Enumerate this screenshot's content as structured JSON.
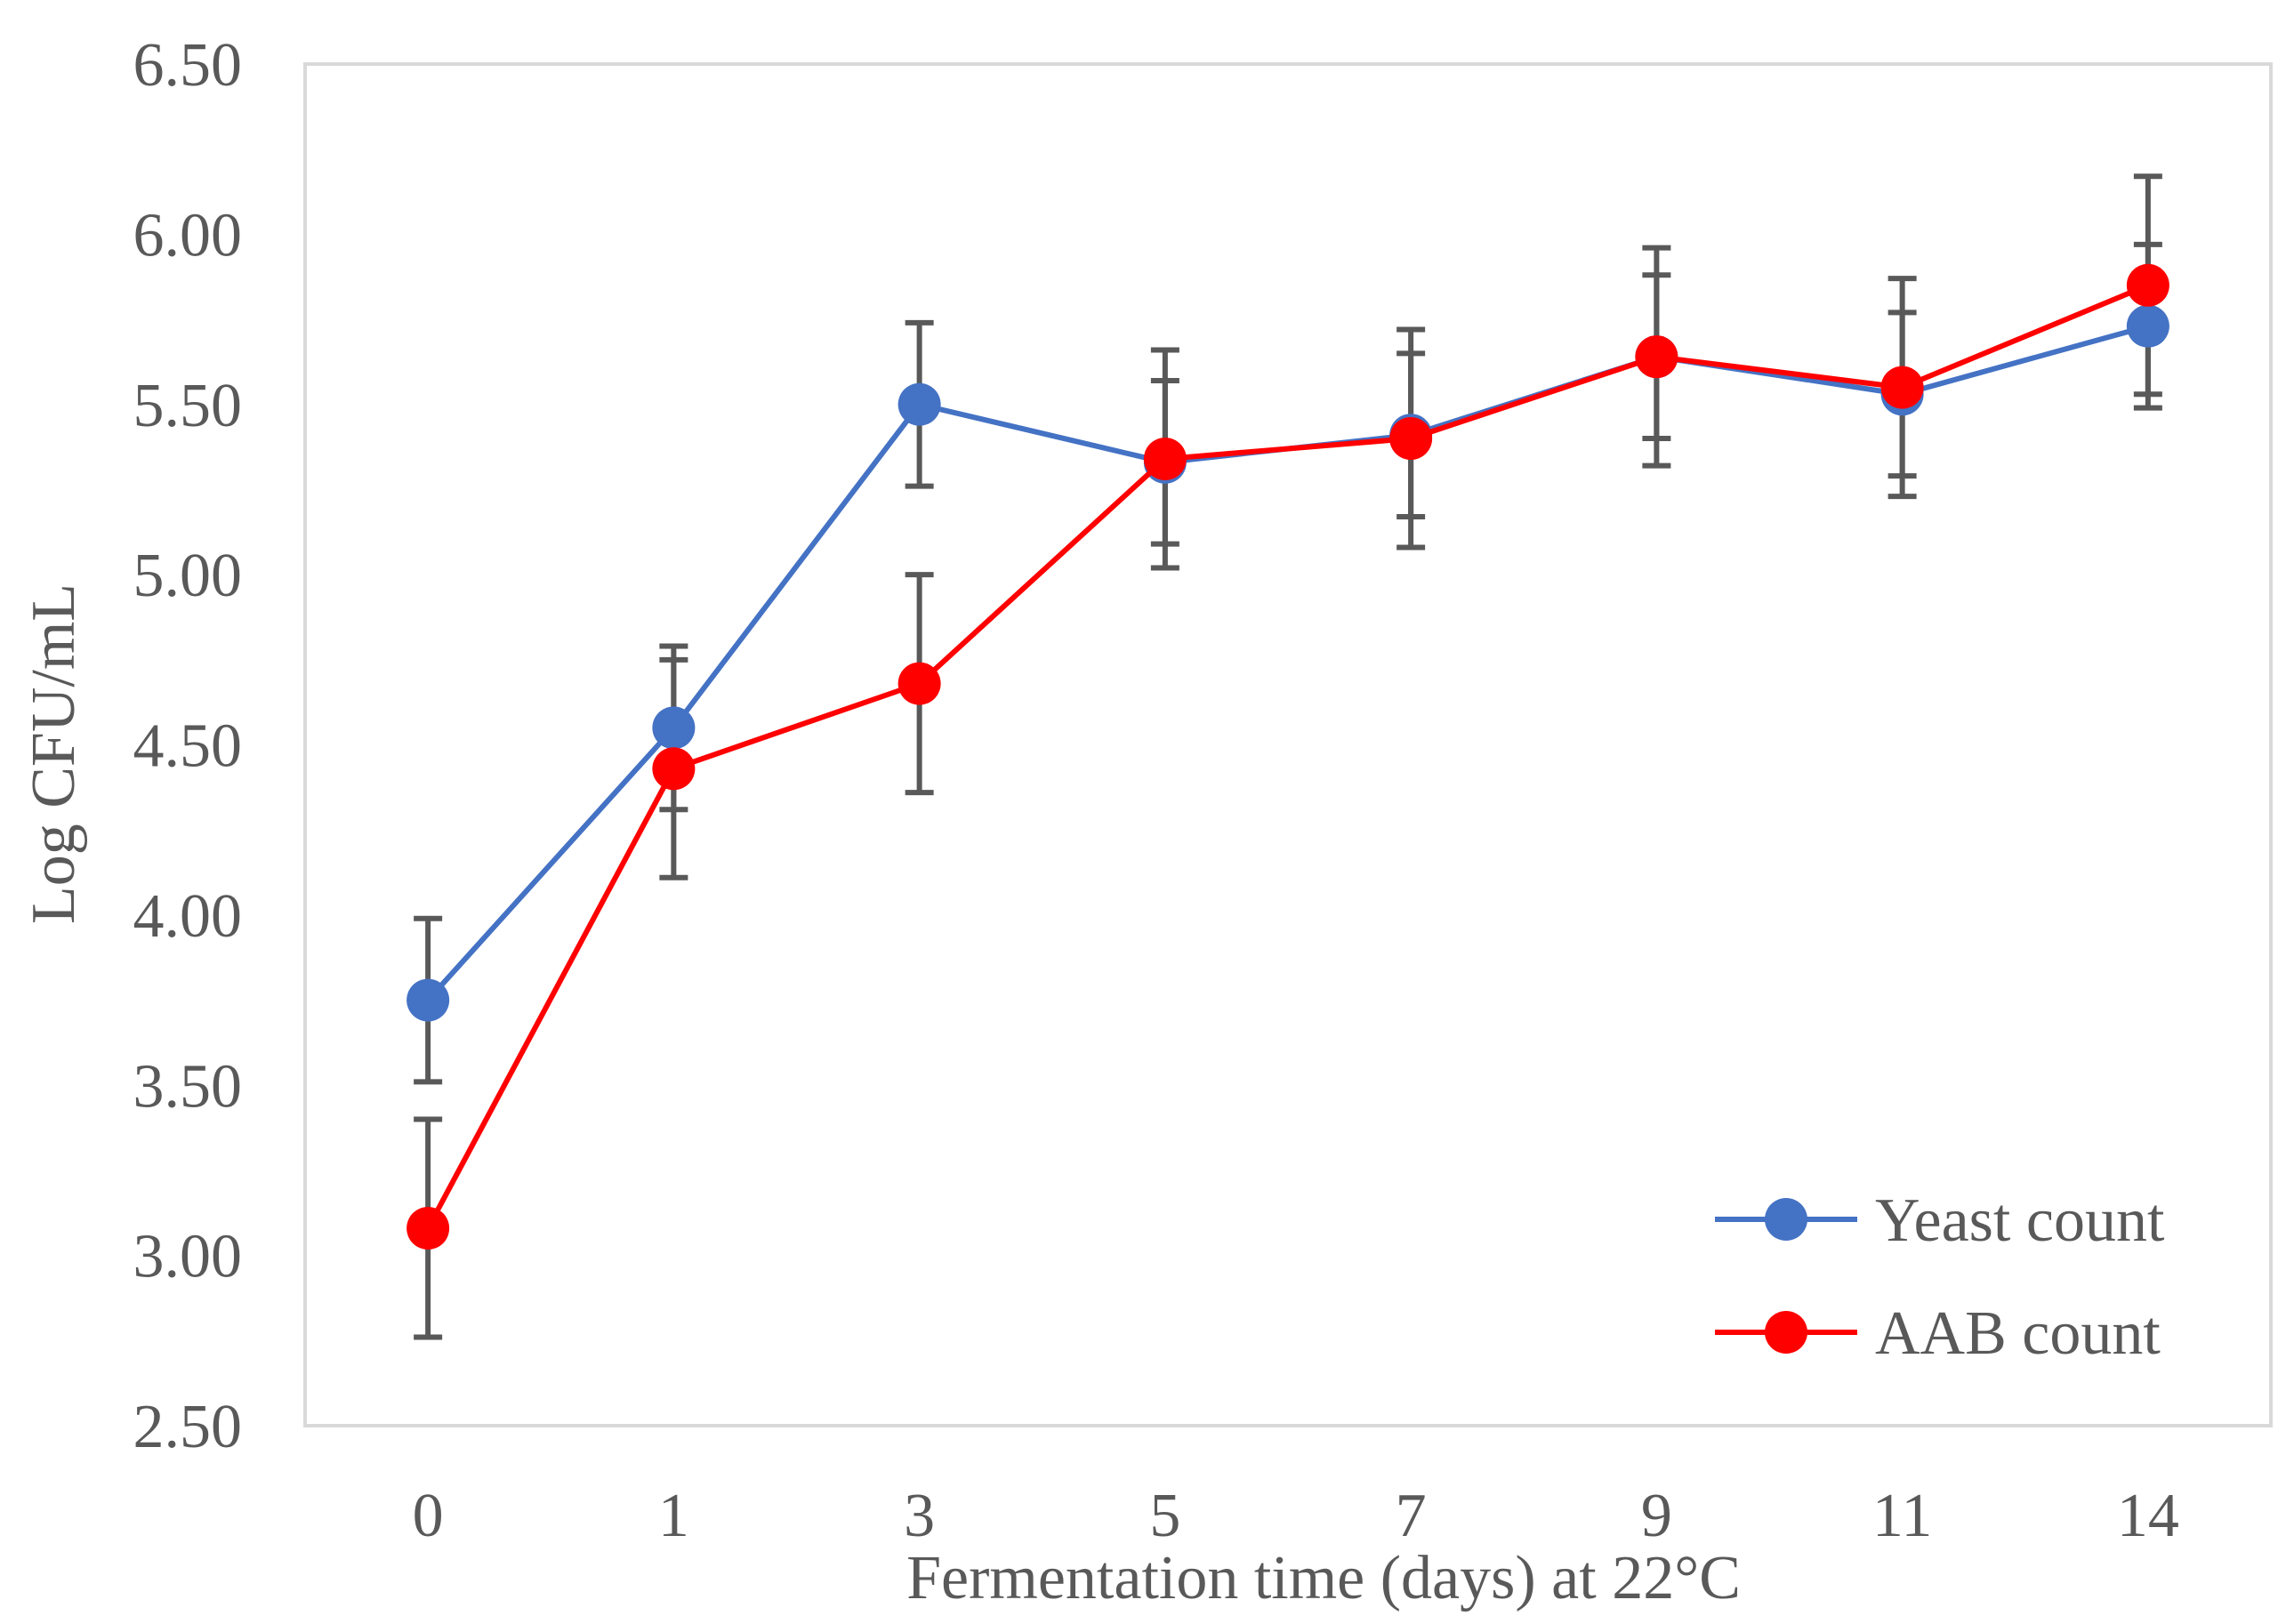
{
  "chart_data": {
    "type": "line",
    "title": "",
    "xlabel": "Fermentation time  (days) at 22°C",
    "ylabel": "Log  CFU/mL",
    "categories": [
      "0",
      "1",
      "3",
      "5",
      "7",
      "9",
      "11",
      "14"
    ],
    "ylim": [
      2.5,
      6.5
    ],
    "yticks": [
      "2.50",
      "3.00",
      "3.50",
      "4.00",
      "4.50",
      "5.00",
      "5.50",
      "6.00",
      "6.50"
    ],
    "grid": false,
    "legend_position": "bottom-right",
    "series": [
      {
        "name": "Yeast count",
        "color": "#4472C4",
        "values": [
          3.75,
          4.55,
          5.5,
          5.33,
          5.41,
          5.64,
          5.53,
          5.73
        ],
        "errors": [
          0.24,
          0.24,
          0.24,
          0.24,
          0.24,
          0.24,
          0.24,
          0.24
        ]
      },
      {
        "name": "AAB count",
        "color": "#FF0000",
        "values": [
          3.08,
          4.43,
          4.68,
          5.34,
          5.4,
          5.64,
          5.55,
          5.85
        ],
        "errors": [
          0.32,
          0.32,
          0.32,
          0.32,
          0.32,
          0.32,
          0.32,
          0.32
        ]
      }
    ],
    "error_bar_color": "#595959",
    "axis_color": "#D9D9D9"
  }
}
